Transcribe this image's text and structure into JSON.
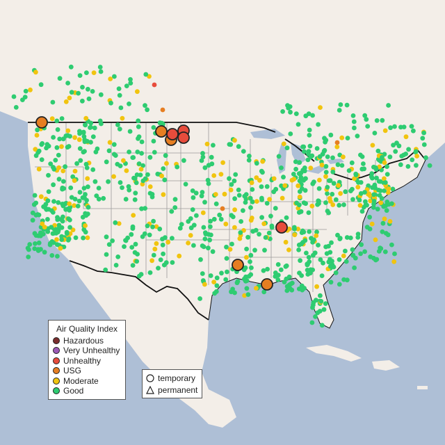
{
  "legend": {
    "title": "Air Quality Index",
    "items": [
      {
        "label": "Hazardous",
        "color": "#7a2e2e"
      },
      {
        "label": "Very Unhealthy",
        "color": "#9b59b6"
      },
      {
        "label": "Unhealthy",
        "color": "#e74c3c"
      },
      {
        "label": "USG",
        "color": "#e67e22"
      },
      {
        "label": "Moderate",
        "color": "#f1c40f"
      },
      {
        "label": "Good",
        "color": "#2ecc71"
      }
    ]
  },
  "shape_legend": {
    "items": [
      {
        "label": "temporary",
        "shape": "circle-icon"
      },
      {
        "label": "permanent",
        "shape": "triangle-icon"
      }
    ]
  },
  "colors": {
    "land": "#f3eee8",
    "water": "#aebfd6",
    "border": "#111111",
    "state_lines": "#9a9a9a",
    "good": "#2ecc71",
    "moderate": "#f1c40f",
    "usg": "#e67e22",
    "unhealthy": "#e74c3c"
  }
}
